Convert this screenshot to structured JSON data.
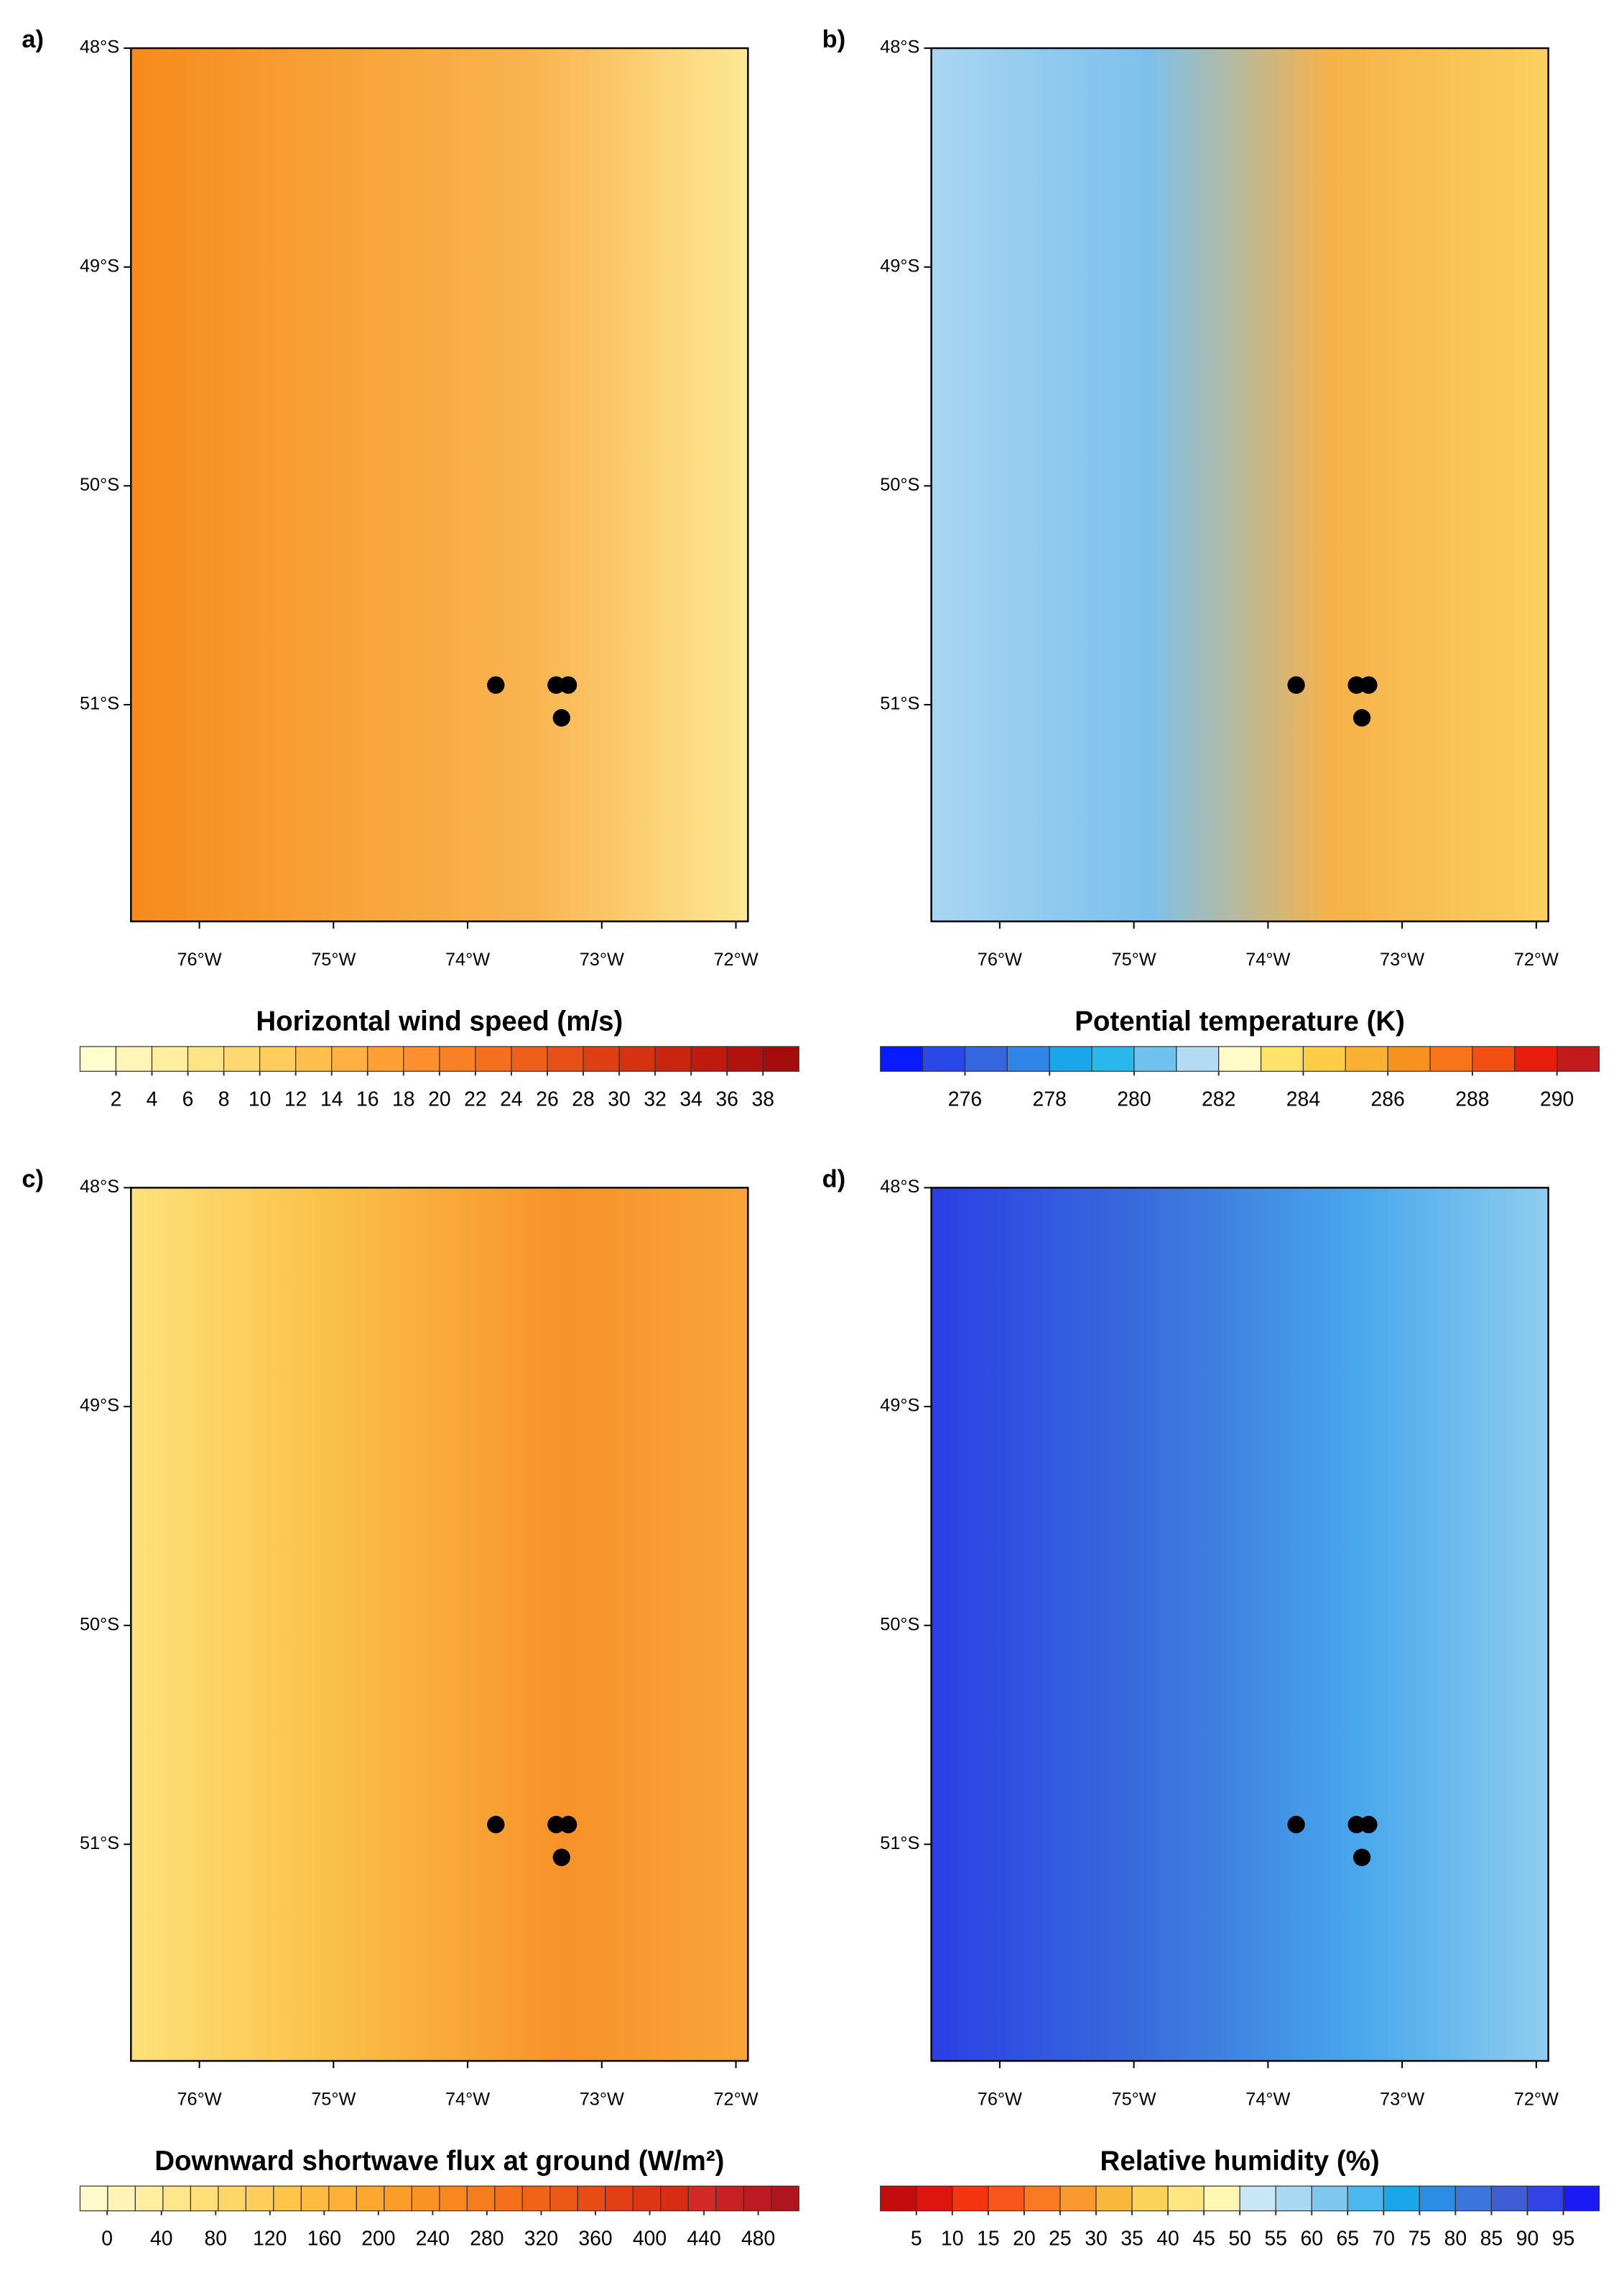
{
  "chart_data": [
    {
      "type": "map",
      "panel": "a)",
      "title": "Horizontal wind speed (m/s)",
      "xlim": [
        -76.51,
        -71.91
      ],
      "ylim": [
        -51.99,
        -48
      ],
      "xticks": [
        {
          "value": -76,
          "label": "76°W"
        },
        {
          "value": -75,
          "label": "75°W"
        },
        {
          "value": -74,
          "label": "74°W"
        },
        {
          "value": -73,
          "label": "73°W"
        },
        {
          "value": -72,
          "label": "72°W"
        }
      ],
      "yticks": [
        {
          "value": -48,
          "label": "48°S"
        },
        {
          "value": -49,
          "label": "49°S"
        },
        {
          "value": -50,
          "label": "50°S"
        },
        {
          "value": -51,
          "label": "51°S"
        }
      ],
      "stations": {
        "x": [
          -73.79,
          -73.34,
          -73.25,
          -73.3
        ],
        "y": [
          -50.91,
          -50.91,
          -50.91,
          -51.06
        ],
        "color": "#000000"
      },
      "colorbar": {
        "lim": [
          0,
          40
        ],
        "ticks": [
          2,
          4,
          6,
          8,
          10,
          12,
          14,
          16,
          18,
          20,
          22,
          24,
          26,
          28,
          30,
          32,
          34,
          36,
          38
        ],
        "colors": [
          "#fffcd0",
          "#fff5b8",
          "#ffee9e",
          "#ffe486",
          "#ffd96f",
          "#ffcd5c",
          "#ffbf4c",
          "#ffb040",
          "#ffa035",
          "#fd902c",
          "#f98025",
          "#f4701f",
          "#ee601a",
          "#e75016",
          "#de4013",
          "#d43211",
          "#c9250f",
          "#be1a0e",
          "#b2120d",
          "#a50d0c"
        ]
      }
    },
    {
      "type": "map",
      "panel": "b)",
      "title": "Potential temperature (K)",
      "xlim": [
        -76.51,
        -71.91
      ],
      "ylim": [
        -51.99,
        -48
      ],
      "xticks": [
        {
          "value": -76,
          "label": "76°W"
        },
        {
          "value": -75,
          "label": "75°W"
        },
        {
          "value": -74,
          "label": "74°W"
        },
        {
          "value": -73,
          "label": "73°W"
        },
        {
          "value": -72,
          "label": "72°W"
        }
      ],
      "yticks": [
        {
          "value": -48,
          "label": "48°S"
        },
        {
          "value": -49,
          "label": "49°S"
        },
        {
          "value": -50,
          "label": "50°S"
        },
        {
          "value": -51,
          "label": "51°S"
        }
      ],
      "stations": {
        "x": [
          -73.79,
          -73.34,
          -73.25,
          -73.3
        ],
        "y": [
          -50.91,
          -50.91,
          -50.91,
          -51.06
        ],
        "color": "#000000"
      },
      "colorbar": {
        "lim": [
          274,
          291
        ],
        "ticks": [
          276,
          278,
          280,
          282,
          284,
          286,
          288,
          290
        ],
        "colors": [
          "#0a1aff",
          "#2a48e8",
          "#3566e0",
          "#2f86e8",
          "#19a6ea",
          "#29b8ec",
          "#70c2ee",
          "#b3dcf4",
          "#fffbc8",
          "#fde36a",
          "#fccd45",
          "#f9b033",
          "#f8921f",
          "#f7741a",
          "#f44f12",
          "#e81e0d",
          "#c31a1d"
        ]
      }
    },
    {
      "type": "map",
      "panel": "c)",
      "title": "Downward shortwave flux at ground (W/m²)",
      "xlim": [
        -76.51,
        -71.91
      ],
      "ylim": [
        -51.99,
        -48
      ],
      "xticks": [
        {
          "value": -76,
          "label": "76°W"
        },
        {
          "value": -75,
          "label": "75°W"
        },
        {
          "value": -74,
          "label": "74°W"
        },
        {
          "value": -73,
          "label": "73°W"
        },
        {
          "value": -72,
          "label": "72°W"
        }
      ],
      "yticks": [
        {
          "value": -48,
          "label": "48°S"
        },
        {
          "value": -49,
          "label": "49°S"
        },
        {
          "value": -50,
          "label": "50°S"
        },
        {
          "value": -51,
          "label": "51°S"
        }
      ],
      "stations": {
        "x": [
          -73.79,
          -73.34,
          -73.25,
          -73.3
        ],
        "y": [
          -50.91,
          -50.91,
          -50.91,
          -51.06
        ],
        "color": "#000000"
      },
      "colorbar": {
        "lim": [
          -20,
          510
        ],
        "ticks": [
          0,
          40,
          80,
          120,
          160,
          200,
          240,
          280,
          320,
          360,
          400,
          440,
          480
        ],
        "colors": [
          "#fffacb",
          "#fff4b6",
          "#ffeda0",
          "#ffe68b",
          "#ffdf78",
          "#ffd767",
          "#ffce58",
          "#ffc54b",
          "#ffbb40",
          "#ffb137",
          "#fea72f",
          "#fd9d29",
          "#fb9224",
          "#f98720",
          "#f77c1d",
          "#f4701a",
          "#f06418",
          "#ec5816",
          "#e74c15",
          "#e24014",
          "#dd3614",
          "#d82c15",
          "#d42a27",
          "#c82024",
          "#bc1a22",
          "#b01520"
        ]
      }
    },
    {
      "type": "map",
      "panel": "d)",
      "title": "Relative humidity (%)",
      "xlim": [
        -76.51,
        -71.91
      ],
      "ylim": [
        -51.99,
        -48
      ],
      "xticks": [
        {
          "value": -76,
          "label": "76°W"
        },
        {
          "value": -75,
          "label": "75°W"
        },
        {
          "value": -74,
          "label": "74°W"
        },
        {
          "value": -73,
          "label": "73°W"
        },
        {
          "value": -72,
          "label": "72°W"
        }
      ],
      "yticks": [
        {
          "value": -48,
          "label": "48°S"
        },
        {
          "value": -49,
          "label": "49°S"
        },
        {
          "value": -50,
          "label": "50°S"
        },
        {
          "value": -51,
          "label": "51°S"
        }
      ],
      "stations": {
        "x": [
          -73.79,
          -73.34,
          -73.25,
          -73.3
        ],
        "y": [
          -50.91,
          -50.91,
          -50.91,
          -51.06
        ],
        "color": "#000000"
      },
      "colorbar": {
        "lim": [
          0,
          100
        ],
        "ticks": [
          5,
          10,
          15,
          20,
          25,
          30,
          35,
          40,
          45,
          50,
          55,
          60,
          65,
          70,
          75,
          80,
          85,
          90,
          95
        ],
        "colors": [
          "#c40c0c",
          "#e0140f",
          "#f53510",
          "#f8561a",
          "#f97a22",
          "#fa9a2e",
          "#fbb83c",
          "#fcd35a",
          "#fde682",
          "#fff6b2",
          "#c9e6f6",
          "#a8d8f2",
          "#7ec8f0",
          "#4ab7ee",
          "#1aa6ea",
          "#2b8ee4",
          "#3a76dc",
          "#3f5ed6",
          "#3242e6",
          "#1a1af5"
        ]
      }
    }
  ]
}
